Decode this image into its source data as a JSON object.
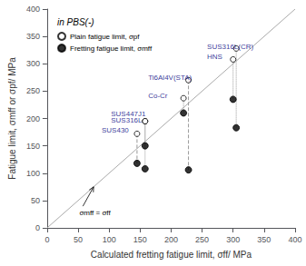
{
  "chart_data": {
    "type": "scatter",
    "title": "in PBS(-)",
    "xlabel": "Calculated fretting fatigue limit, σff/ MPa",
    "ylabel": "Fatigue limit, σmff or σpf/ MPa",
    "xlim": [
      0,
      400
    ],
    "ylim": [
      0,
      400
    ],
    "xticks": [
      0,
      50,
      100,
      150,
      200,
      250,
      300,
      350,
      400
    ],
    "yticks": [
      0,
      50,
      100,
      150,
      200,
      250,
      300,
      350,
      400
    ],
    "grid": false,
    "legend": "upper left",
    "series": [
      {
        "name": "Plain fatigue limit, σpf",
        "marker": "open_circle",
        "color": "#000000",
        "x": [
          145,
          158,
          158,
          228,
          220,
          300,
          305
        ],
        "values": [
          172,
          195,
          195,
          270,
          237,
          308,
          328
        ]
      },
      {
        "name": "Fretting fatigue limit, σmff",
        "marker": "filled_circle",
        "color": "#000000",
        "x": [
          145,
          158,
          158,
          228,
          220,
          300,
          305
        ],
        "values": [
          118,
          108,
          150,
          106,
          210,
          235,
          183
        ]
      }
    ],
    "connectors": {
      "color": "#999999",
      "line_styles": [
        "dashed",
        "dotted",
        "dotted",
        "dashed",
        "dotted",
        "dotted",
        "dotted"
      ]
    },
    "point_labels": {
      "color": "#000080",
      "texts": [
        "SUS430",
        "SUS316L",
        "SUS447J1",
        "Ti6Al4V(STA)",
        "Co-Cr",
        "HNS",
        "SUS316L(CR)"
      ],
      "x": [
        88,
        103,
        103,
        163,
        163,
        258,
        258
      ],
      "y": [
        171,
        190,
        202,
        268,
        235,
        307,
        325
      ]
    },
    "diagonal": {
      "x": [
        0,
        400
      ],
      "y": [
        0,
        400
      ],
      "color": "#aaaaaa"
    },
    "arrow_annotation": {
      "text": "σmff = σff",
      "x": 75,
      "y": 75,
      "text_x": 52,
      "text_y": 28
    }
  }
}
